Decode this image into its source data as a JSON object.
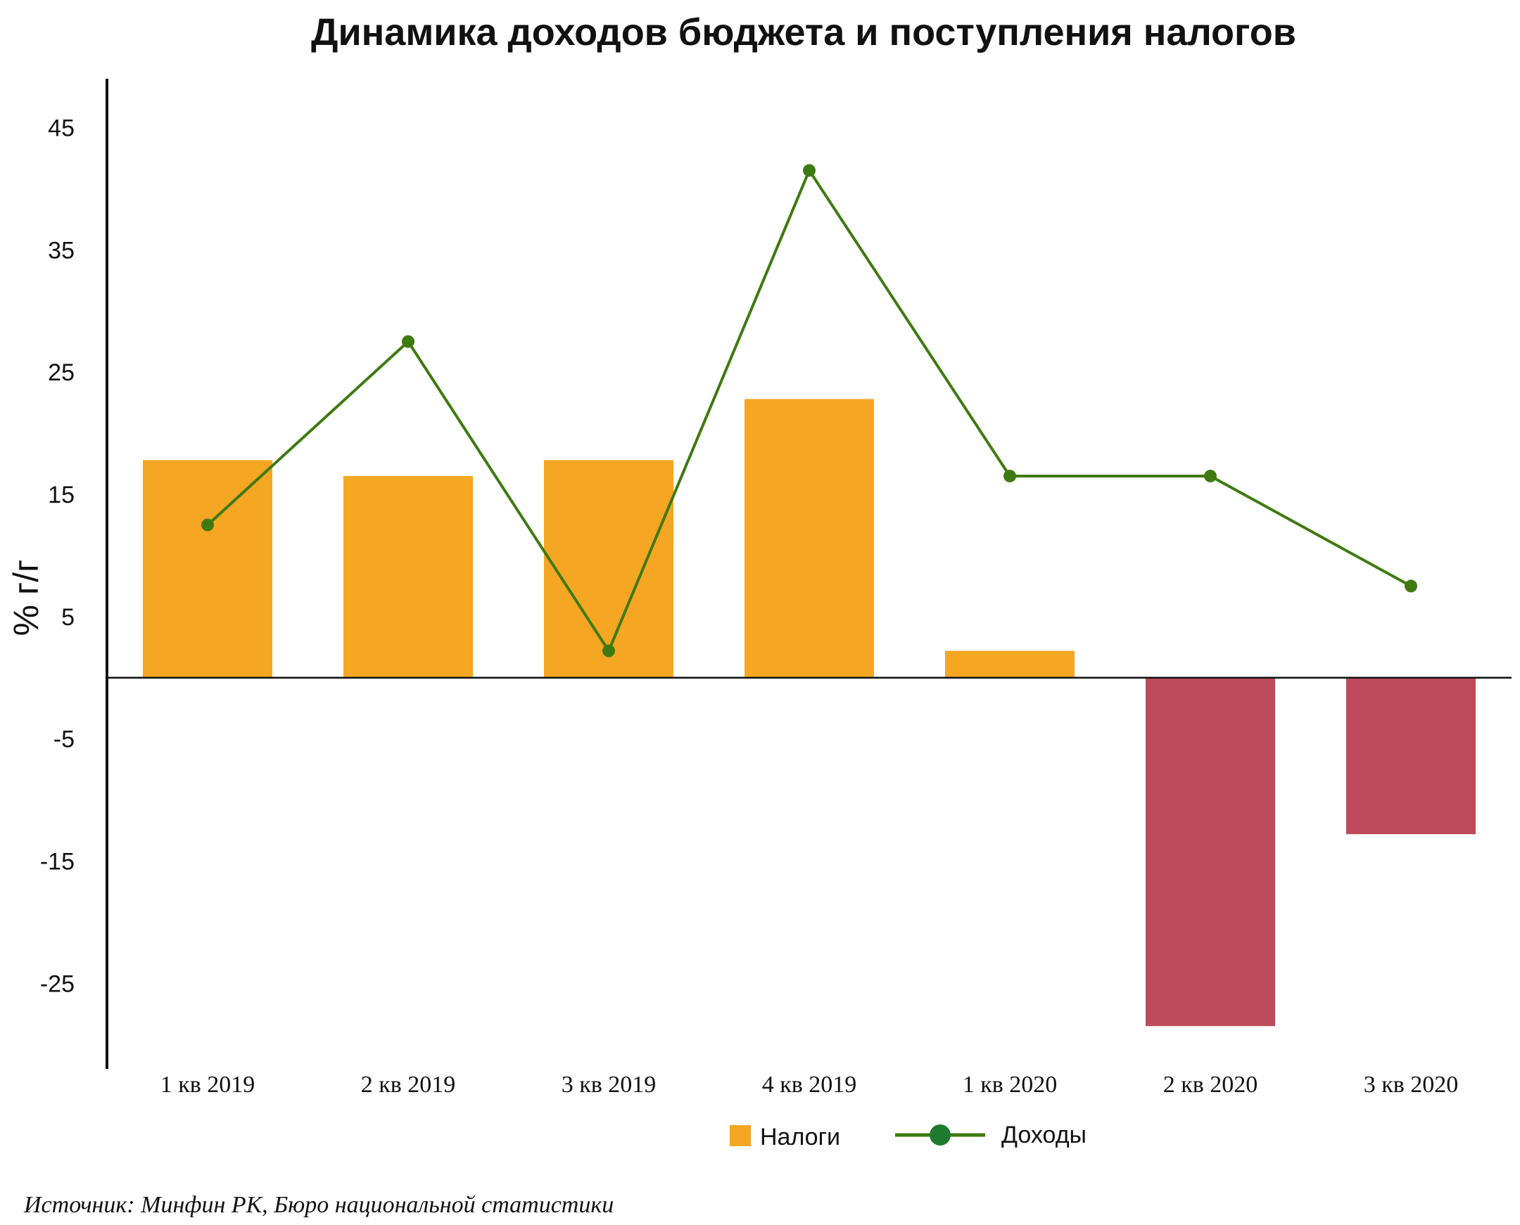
{
  "chart_data": {
    "type": "bar",
    "title": "Динамика доходов бюджета и поступления  налогов",
    "ylabel": "% г/г",
    "xlabel": "",
    "categories": [
      "1 кв 2019",
      "2 кв 2019",
      "3 кв 2019",
      "4 кв 2019",
      "1 кв 2020",
      "2 кв 2020",
      "3 кв 2020"
    ],
    "yticks": [
      45,
      35,
      25,
      15,
      5,
      -5,
      -15,
      -25
    ],
    "ylim": [
      -32,
      49
    ],
    "series": [
      {
        "name": "Налоги",
        "type": "bar",
        "values": [
          17.8,
          16.5,
          17.8,
          22.8,
          2.2,
          -28.5,
          -12.8
        ]
      },
      {
        "name": "Доходы",
        "type": "line",
        "values": [
          12.5,
          27.5,
          2.2,
          41.5,
          16.5,
          16.5,
          7.5
        ]
      }
    ],
    "colors": {
      "positive_bar": "#F5A623",
      "negative_bar": "#BC4A5A",
      "line": "#3F7A10",
      "legend_marker": "#1E7A2E",
      "axis": "#111111"
    },
    "legend": {
      "placement": "bottom",
      "items": [
        "Налоги",
        "Доходы"
      ]
    },
    "grid": false,
    "source": "Источник: Минфин РК,  Бюро национальной статистики"
  }
}
